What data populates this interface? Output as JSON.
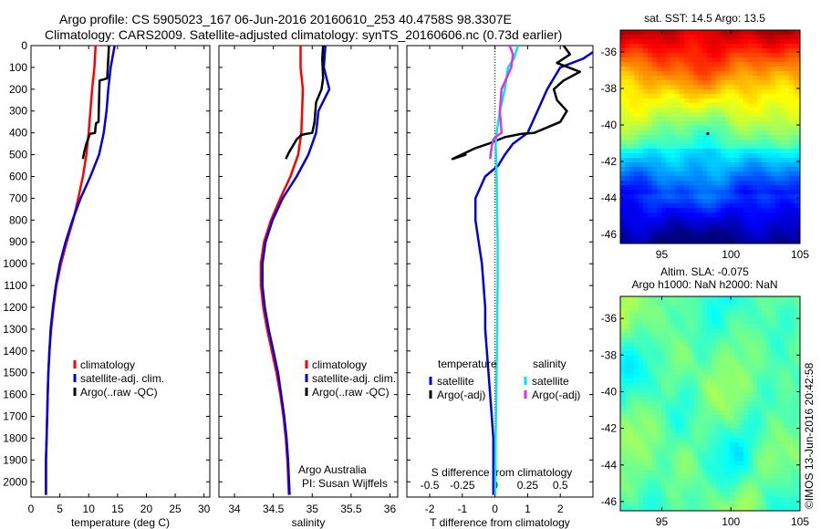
{
  "header": {
    "line1": "Argo profile: CS 5905023_167 06-Jun-2016 20160610_253 40.4758S 98.3307E",
    "line2": "Climatology: CARS2009. Satellite-adjusted climatology: synTS_20160606.nc (0.73d earlier)"
  },
  "credit": "©IMOS 13-Jun-2016 20:42:58",
  "colors": {
    "climatology": "#ff0000",
    "satellite": "#0000dd",
    "argo": "#000000",
    "satellite_salinity": "#00e5ee",
    "argo_salinity": "#e033e0"
  },
  "chart_data": [
    {
      "type": "line",
      "id": "temperature",
      "xlabel": "temperature (deg C)",
      "ylabel": "",
      "xlim": [
        0,
        31
      ],
      "ylim": [
        2070,
        0
      ],
      "xticks": [
        0,
        5,
        10,
        15,
        20,
        25,
        30
      ],
      "yticks": [
        0,
        100,
        200,
        300,
        400,
        500,
        600,
        700,
        800,
        900,
        1000,
        1100,
        1200,
        1300,
        1400,
        1500,
        1600,
        1700,
        1800,
        1900,
        2000
      ],
      "legend": [
        "climatology",
        "satellite-adj. clim.",
        "Argo(..raw -QC)"
      ],
      "series": [
        {
          "name": "climatology",
          "color_key": "climatology",
          "x": [
            11.2,
            11.0,
            10.6,
            10.3,
            10.0,
            9.6,
            9.0,
            8.2,
            7.3,
            6.2,
            5.2,
            4.4,
            3.9,
            3.5,
            3.2,
            3.0,
            2.9,
            2.8,
            2.7,
            2.6,
            2.6
          ],
          "y": [
            0,
            100,
            200,
            300,
            400,
            500,
            600,
            700,
            800,
            900,
            1000,
            1100,
            1200,
            1300,
            1400,
            1500,
            1600,
            1700,
            1800,
            1900,
            2060
          ]
        },
        {
          "name": "satellite-adj. clim.",
          "color_key": "satellite",
          "x": [
            14.5,
            13.8,
            13.4,
            13.1,
            12.6,
            11.8,
            10.3,
            8.6,
            7.2,
            6.0,
            5.0,
            4.3,
            3.8,
            3.4,
            3.2,
            3.0,
            2.9,
            2.8,
            2.7,
            2.6,
            2.6
          ],
          "y": [
            0,
            100,
            200,
            300,
            400,
            500,
            600,
            700,
            800,
            900,
            1000,
            1100,
            1200,
            1300,
            1400,
            1500,
            1600,
            1700,
            1800,
            1900,
            2060
          ]
        },
        {
          "name": "Argo(..raw -QC)",
          "color_key": "argo",
          "x": [
            13.5,
            13.4,
            13.2,
            12.6,
            11.9,
            11.8,
            11.7,
            11.3,
            11.2,
            11.1,
            10.2,
            9.6,
            9.2,
            9.0
          ],
          "y": [
            0,
            60,
            150,
            155,
            160,
            250,
            350,
            355,
            370,
            400,
            405,
            450,
            490,
            520
          ]
        }
      ],
      "legend_placement": "lower-center"
    },
    {
      "type": "line",
      "id": "salinity",
      "xlabel": "salinity",
      "ylabel": "",
      "xlim": [
        33.8,
        36.1
      ],
      "ylim": [
        2070,
        0
      ],
      "xticks": [
        34,
        34.5,
        35,
        35.5,
        36
      ],
      "yticks": [
        0,
        100,
        200,
        300,
        400,
        500,
        600,
        700,
        800,
        900,
        1000,
        1100,
        1200,
        1300,
        1400,
        1500,
        1600,
        1700,
        1800,
        1900,
        2000
      ],
      "legend": [
        "climatology",
        "satellite-adj. clim.",
        "Argo(..raw -QC)"
      ],
      "annotation": [
        "Argo Australia",
        "PI: Susan Wijffels"
      ],
      "series": [
        {
          "name": "climatology",
          "color_key": "climatology",
          "x": [
            34.85,
            34.85,
            34.88,
            34.87,
            34.86,
            34.82,
            34.72,
            34.59,
            34.47,
            34.38,
            34.34,
            34.34,
            34.37,
            34.42,
            34.48,
            34.54,
            34.59,
            34.63,
            34.66,
            34.68,
            34.7
          ],
          "y": [
            0,
            100,
            200,
            300,
            400,
            500,
            600,
            700,
            800,
            900,
            1000,
            1100,
            1200,
            1300,
            1400,
            1500,
            1600,
            1700,
            1800,
            1900,
            2060
          ]
        },
        {
          "name": "satellite-adj. clim.",
          "color_key": "satellite",
          "x": [
            35.17,
            35.15,
            35.22,
            35.08,
            35.05,
            34.95,
            34.8,
            34.62,
            34.49,
            34.4,
            34.36,
            34.36,
            34.39,
            34.44,
            34.5,
            34.56,
            34.6,
            34.64,
            34.67,
            34.69,
            34.71
          ],
          "y": [
            0,
            100,
            200,
            300,
            400,
            500,
            600,
            700,
            800,
            900,
            1000,
            1100,
            1200,
            1300,
            1400,
            1500,
            1600,
            1700,
            1800,
            1900,
            2060
          ]
        },
        {
          "name": "Argo(..raw -QC)",
          "color_key": "argo",
          "x": [
            35.14,
            35.13,
            35.14,
            35.12,
            35.05,
            35.03,
            35.0,
            34.92,
            34.86,
            34.8,
            34.75,
            34.7,
            34.66
          ],
          "y": [
            0,
            60,
            150,
            200,
            260,
            350,
            400,
            405,
            410,
            430,
            460,
            490,
            520
          ]
        }
      ],
      "legend_placement": "lower-center"
    },
    {
      "type": "line",
      "id": "difference",
      "xlabel": "T difference from climatology",
      "x2label": "S difference from climatology",
      "ylabel": "",
      "xlim": [
        -2.7,
        3.0
      ],
      "ylim": [
        2070,
        0
      ],
      "xticks": [
        -2,
        -1,
        0,
        1,
        2
      ],
      "xticks_s": [
        -0.5,
        -0.25,
        0,
        0.25,
        0.5
      ],
      "yticks": [
        0,
        100,
        200,
        300,
        400,
        500,
        600,
        700,
        800,
        900,
        1000,
        1100,
        1200,
        1300,
        1400,
        1500,
        1600,
        1700,
        1800,
        1900,
        2000
      ],
      "legend_groups": [
        "temperature",
        "salinity"
      ],
      "legend": [
        "satellite",
        "Argo(-adj)",
        "satellite",
        "Argo(-adj)"
      ],
      "series": [
        {
          "name": "satellite",
          "group": "temperature",
          "color_key": "satellite",
          "x": [
            3.3,
            2.7,
            2.0,
            1.6,
            1.3,
            1.0,
            0.55,
            0.3,
            0.1,
            -0.3,
            -0.6,
            -0.6,
            -0.5,
            -0.4,
            -0.3,
            -0.3,
            -0.25,
            -0.2,
            -0.15,
            -0.1,
            -0.05,
            -0.05
          ],
          "y": [
            0,
            60,
            100,
            200,
            300,
            400,
            450,
            500,
            550,
            600,
            700,
            800,
            900,
            1000,
            1200,
            1300,
            1400,
            1500,
            1600,
            1700,
            1800,
            2060
          ]
        },
        {
          "name": "Argo(-adj)",
          "group": "temperature",
          "color_key": "argo",
          "x": [
            2.1,
            2.3,
            1.9,
            2.6,
            2.1,
            1.8,
            1.9,
            2.2,
            2.0,
            1.2,
            0.8,
            0.3,
            -0.2,
            -0.6,
            -1.3,
            -0.9,
            -1.1
          ],
          "y": [
            0,
            40,
            80,
            120,
            160,
            200,
            250,
            300,
            350,
            400,
            405,
            420,
            450,
            470,
            520,
            500,
            510
          ]
        },
        {
          "name": "satellite",
          "group": "salinity",
          "color_key": "satellite_salinity",
          "x": [
            0.7,
            0.58,
            0.4,
            0.3,
            0.15,
            0.05,
            0.02,
            0.03,
            0.05,
            0.06,
            0.07,
            0.08,
            0.08,
            0.08,
            0.07,
            0.07,
            0.06,
            0.05,
            0.04,
            0.03,
            0.02,
            0.01
          ],
          "y": [
            0,
            60,
            100,
            200,
            300,
            400,
            450,
            500,
            600,
            700,
            800,
            900,
            1000,
            1100,
            1200,
            1300,
            1400,
            1500,
            1600,
            1700,
            1800,
            2060
          ]
        },
        {
          "name": "Argo(-adj)",
          "group": "salinity",
          "color_key": "argo_salinity",
          "x": [
            0.45,
            0.55,
            0.5,
            0.35,
            0.2,
            0.15,
            0.2,
            0.1,
            -0.05,
            -0.1,
            -0.15
          ],
          "y": [
            0,
            40,
            100,
            150,
            200,
            300,
            400,
            410,
            430,
            460,
            520
          ]
        }
      ],
      "legend_placement": "lower-center"
    },
    {
      "type": "heatmap",
      "id": "sst_map",
      "title": "sat. SST: 14.5 Argo: 13.5",
      "xlim": [
        92,
        105
      ],
      "ylim": [
        -46.5,
        -34.8
      ],
      "xticks": [
        95,
        100,
        105
      ],
      "yticks": [
        -36,
        -38,
        -40,
        -42,
        -44,
        -46
      ],
      "marker": {
        "lon": 98.33,
        "lat": -40.48
      },
      "colorscale": "jet"
    },
    {
      "type": "heatmap",
      "id": "sla_map",
      "title": [
        "Altim. SLA: -0.075",
        "Argo h1000: NaN h2000: NaN"
      ],
      "xlim": [
        92,
        105
      ],
      "ylim": [
        -46.5,
        -34.8
      ],
      "xticks": [
        95,
        100,
        105
      ],
      "yticks": [
        -36,
        -38,
        -40,
        -42,
        -44,
        -46
      ],
      "colorscale": "jet"
    }
  ]
}
